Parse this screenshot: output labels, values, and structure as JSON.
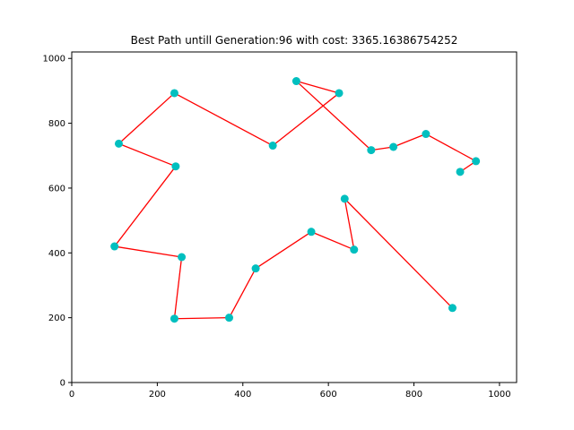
{
  "chart_data": {
    "type": "line",
    "title": "Best Path untill Generation:96 with cost: 3365.16386754252",
    "xlabel": "",
    "ylabel": "",
    "xlim": [
      0,
      1040
    ],
    "ylim": [
      0,
      1020
    ],
    "x_ticks": [
      0,
      200,
      400,
      600,
      800,
      1000
    ],
    "y_ticks": [
      0,
      200,
      400,
      600,
      800,
      1000
    ],
    "grid": false,
    "line_color": "#ff0000",
    "marker_color": "#00bfbf",
    "path": [
      {
        "x": 890,
        "y": 230
      },
      {
        "x": 638,
        "y": 567
      },
      {
        "x": 660,
        "y": 410
      },
      {
        "x": 560,
        "y": 465
      },
      {
        "x": 430,
        "y": 352
      },
      {
        "x": 368,
        "y": 200
      },
      {
        "x": 240,
        "y": 197
      },
      {
        "x": 257,
        "y": 387
      },
      {
        "x": 100,
        "y": 420
      },
      {
        "x": 243,
        "y": 667
      },
      {
        "x": 110,
        "y": 737
      },
      {
        "x": 240,
        "y": 893
      },
      {
        "x": 470,
        "y": 731
      },
      {
        "x": 625,
        "y": 893
      },
      {
        "x": 525,
        "y": 930
      },
      {
        "x": 700,
        "y": 717
      },
      {
        "x": 752,
        "y": 727
      },
      {
        "x": 828,
        "y": 767
      },
      {
        "x": 945,
        "y": 683
      },
      {
        "x": 908,
        "y": 650
      }
    ]
  }
}
